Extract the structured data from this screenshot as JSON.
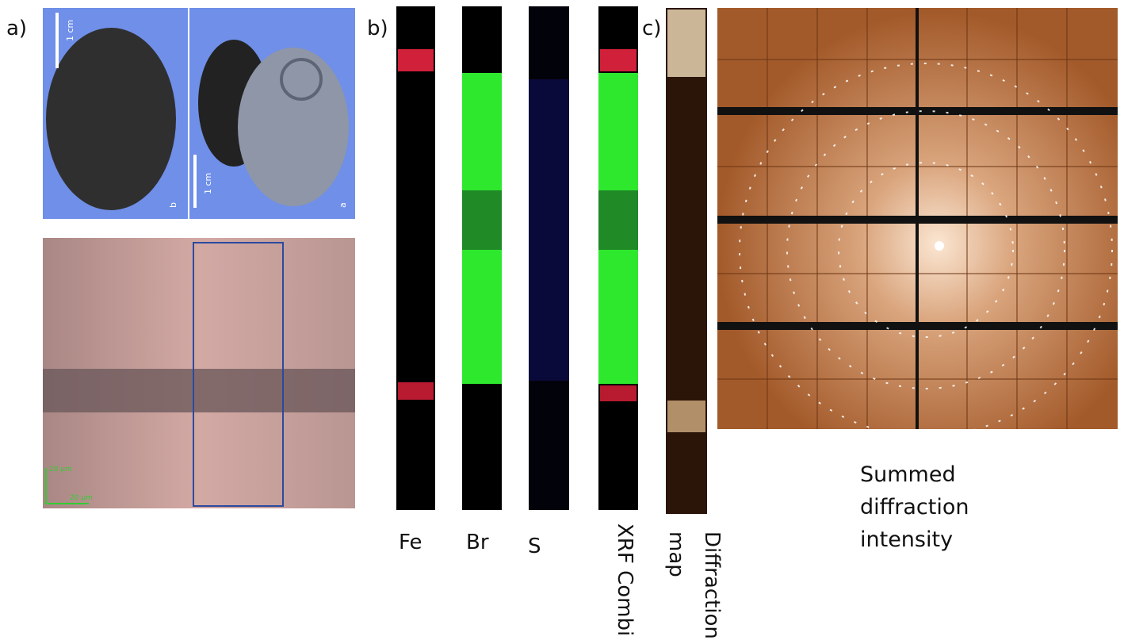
{
  "panels": {
    "a": {
      "label": "a)",
      "photo_left": {
        "scale": "1 cm",
        "letter": "b"
      },
      "photo_right": {
        "scale": "1 cm",
        "letter": "a"
      },
      "micrograph": {
        "scale_vertical": "20 µm",
        "scale_horizontal": "20 µm"
      }
    },
    "b": {
      "label": "b)",
      "strips": [
        "Fe",
        "Br",
        "S",
        "XRF Combi"
      ]
    },
    "c": {
      "label": "c)",
      "map_caption": [
        "Diffraction",
        "map"
      ],
      "caption": [
        "Summed",
        "diffraction",
        "intensity"
      ]
    }
  }
}
